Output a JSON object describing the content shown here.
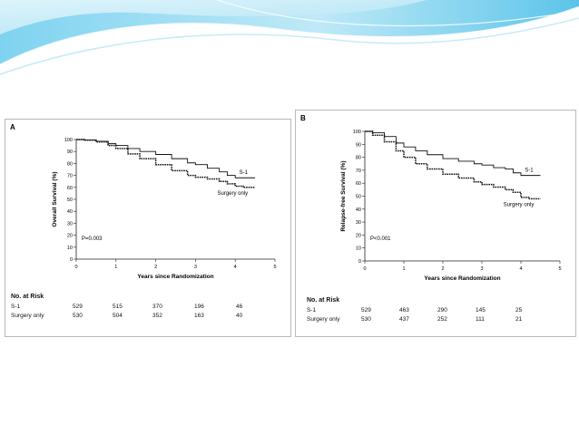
{
  "slide": {
    "background": "#ffffff",
    "accent": "#1aa3d9"
  },
  "chart_data": [
    {
      "panel": "A",
      "type": "line",
      "ylabel": "Overall Survival (%)",
      "xlabel": "Years since Randomization",
      "ylim": [
        0,
        100
      ],
      "xlim": [
        0,
        5
      ],
      "yticks": [
        "0",
        "10",
        "20",
        "30",
        "40",
        "50",
        "60",
        "70",
        "80",
        "90",
        "100"
      ],
      "xticks": [
        "0",
        "1",
        "2",
        "3",
        "4",
        "5"
      ],
      "annotation": "P=0.003",
      "series": [
        {
          "name": "S-1",
          "style": "solid",
          "x": [
            0,
            0.2,
            0.5,
            0.8,
            1.0,
            1.3,
            1.6,
            2.0,
            2.4,
            2.8,
            3.0,
            3.3,
            3.6,
            3.8,
            4.0,
            4.2,
            4.5
          ],
          "y": [
            100,
            99.5,
            98.5,
            96.5,
            95,
            92.5,
            90,
            87.5,
            84,
            80.5,
            79,
            76,
            73,
            70,
            68,
            68,
            68
          ]
        },
        {
          "name": "Surgery only",
          "style": "dashed",
          "x": [
            0,
            0.2,
            0.5,
            0.8,
            1.0,
            1.3,
            1.6,
            2.0,
            2.4,
            2.8,
            3.0,
            3.3,
            3.6,
            3.8,
            4.0,
            4.2,
            4.5
          ],
          "y": [
            100,
            99.5,
            98,
            95,
            92.5,
            88,
            84,
            79,
            74,
            70,
            68.5,
            67,
            65,
            63,
            61,
            60,
            60
          ]
        }
      ],
      "risk_table": {
        "title": "No. at Risk",
        "rows": [
          {
            "label": "S-1",
            "values": [
              "529",
              "515",
              "370",
              "196",
              "46"
            ]
          },
          {
            "label": "Surgery only",
            "values": [
              "530",
              "504",
              "352",
              "163",
              "40"
            ]
          }
        ]
      }
    },
    {
      "panel": "B",
      "type": "line",
      "ylabel": "Relapse-free Survival (%)",
      "xlabel": "Years since Randomization",
      "ylim": [
        0,
        100
      ],
      "xlim": [
        0,
        5
      ],
      "yticks": [
        "0",
        "10",
        "20",
        "30",
        "40",
        "50",
        "60",
        "70",
        "80",
        "90",
        "100"
      ],
      "xticks": [
        "0",
        "1",
        "2",
        "3",
        "4",
        "5"
      ],
      "annotation": "P<0.001",
      "series": [
        {
          "name": "S-1",
          "style": "solid",
          "x": [
            0,
            0.2,
            0.5,
            0.8,
            1.0,
            1.3,
            1.6,
            2.0,
            2.4,
            2.8,
            3.0,
            3.3,
            3.6,
            3.8,
            4.0,
            4.2,
            4.5
          ],
          "y": [
            100,
            99,
            96,
            91,
            88,
            85,
            82,
            79,
            77,
            75,
            74,
            72,
            71,
            68,
            66,
            66,
            66
          ]
        },
        {
          "name": "Surgery only",
          "style": "dashed",
          "x": [
            0,
            0.2,
            0.5,
            0.8,
            1.0,
            1.3,
            1.6,
            2.0,
            2.4,
            2.8,
            3.0,
            3.3,
            3.6,
            3.8,
            4.0,
            4.2,
            4.5
          ],
          "y": [
            100,
            97,
            92,
            85,
            80,
            75,
            71,
            67,
            64,
            61,
            59,
            57,
            55,
            53,
            49,
            48,
            48
          ]
        }
      ],
      "risk_table": {
        "title": "No. at Risk",
        "rows": [
          {
            "label": "S-1",
            "values": [
              "529",
              "463",
              "290",
              "145",
              "25"
            ]
          },
          {
            "label": "Surgery only",
            "values": [
              "530",
              "437",
              "252",
              "111",
              "21"
            ]
          }
        ]
      }
    }
  ]
}
